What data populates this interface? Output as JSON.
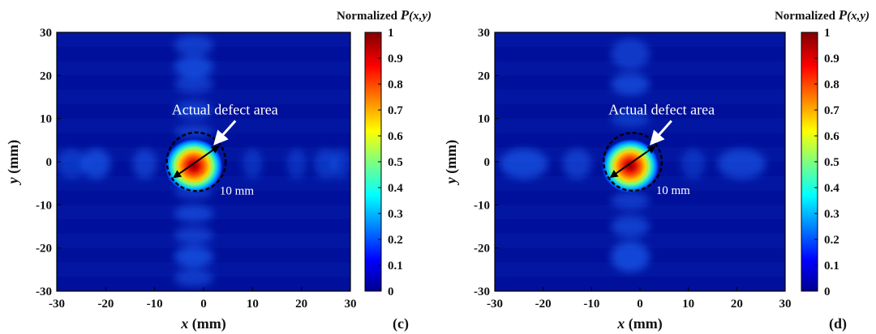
{
  "chart_data": [
    {
      "type": "heatmap",
      "panel": "(c)",
      "xlabel_var": "x",
      "xlabel_unit": "(mm)",
      "ylabel_var": "y",
      "ylabel_unit": "(mm)",
      "xlim": [
        -30,
        30
      ],
      "ylim": [
        -30,
        30
      ],
      "xticks": [
        -30,
        -20,
        -10,
        0,
        10,
        20,
        30
      ],
      "yticks": [
        30,
        20,
        10,
        0,
        -10,
        -20,
        -30
      ],
      "colorbar": {
        "title_prefix": "Normalized ",
        "title_var": "P",
        "title_args": "(x,y)",
        "range": [
          0,
          1
        ],
        "ticks": [
          1,
          0.9,
          0.8,
          0.7,
          0.6,
          0.5,
          0.4,
          0.3,
          0.2,
          0.1,
          0
        ]
      },
      "peak": {
        "x": -2,
        "y": -1,
        "value": 1
      },
      "defect_circle": {
        "center_x": -1.5,
        "center_y": 0,
        "diameter_mm": 10
      },
      "annotation": "Actual defect area",
      "dimension_label": "10 mm"
    },
    {
      "type": "heatmap",
      "panel": "(d)",
      "xlabel_var": "x",
      "xlabel_unit": "(mm)",
      "ylabel_var": "y",
      "ylabel_unit": "(mm)",
      "xlim": [
        -30,
        30
      ],
      "ylim": [
        -30,
        30
      ],
      "xticks": [
        -30,
        -20,
        -10,
        0,
        10,
        20,
        30
      ],
      "yticks": [
        30,
        20,
        10,
        0,
        -10,
        -20,
        -30
      ],
      "colorbar": {
        "title_prefix": "Normalized ",
        "title_var": "P",
        "title_args": "(x,y)",
        "range": [
          0,
          1
        ],
        "ticks": [
          1,
          0.9,
          0.8,
          0.7,
          0.6,
          0.5,
          0.4,
          0.3,
          0.2,
          0.1,
          0
        ]
      },
      "peak": {
        "x": -2,
        "y": -1,
        "value": 1
      },
      "defect_circle": {
        "center_x": -1.5,
        "center_y": 0,
        "diameter_mm": 10
      },
      "annotation": "Actual defect area",
      "dimension_label": "10 mm"
    }
  ],
  "colors": {
    "background_field": "#00109a",
    "frame": "#000000"
  }
}
